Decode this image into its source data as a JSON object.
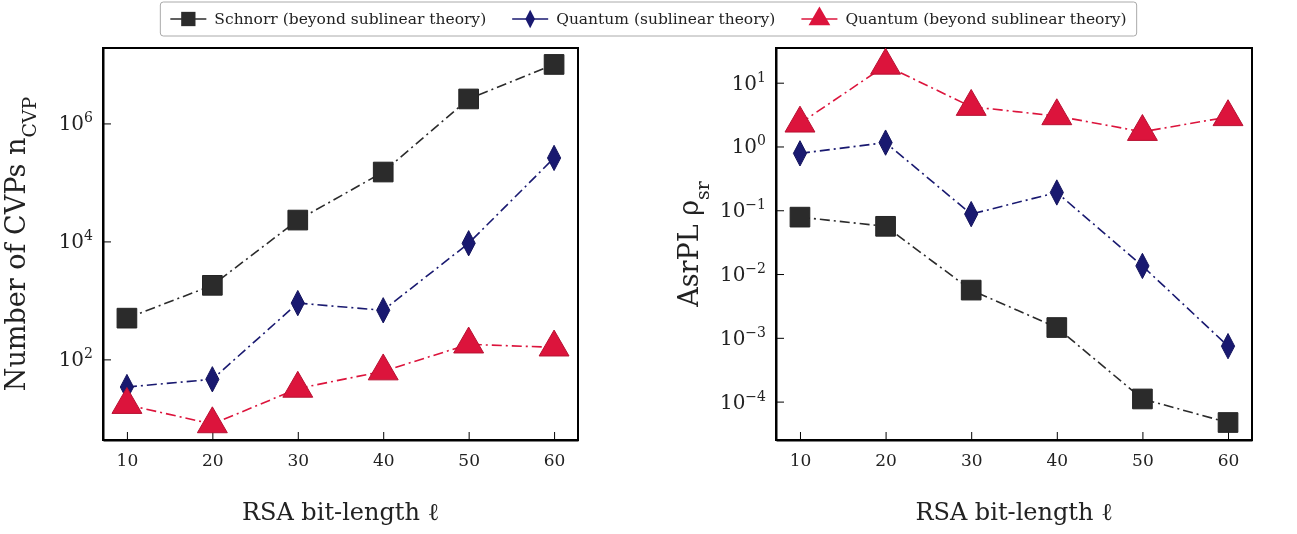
{
  "chart_data": [
    {
      "type": "line",
      "xlabel": "RSA bit-length  ℓ",
      "ylabel": "Number of CVPs  n$_{CVP}$",
      "log": "y",
      "legend": "top",
      "grid": false,
      "line_style": "dashed",
      "x": [
        10,
        20,
        30,
        40,
        50,
        60
      ],
      "xlim": [
        7.2,
        62.8
      ],
      "xticks": [
        10,
        20,
        30,
        40,
        50,
        60
      ],
      "ylim": [
        4.3,
        19000000
      ],
      "yticks": [
        {
          "value": 100,
          "label": "10$^{2}$"
        },
        {
          "value": 10000,
          "label": "10$^{4}$"
        },
        {
          "value": 1000000,
          "label": "10$^{6}$"
        }
      ],
      "series": [
        {
          "name": "Schnorr (beyond sublinear theory)",
          "color": "#2b2b2b",
          "marker": "square",
          "values": [
            500,
            1800,
            23000,
            150000,
            2600000,
            10000000
          ]
        },
        {
          "name": "Quantum (sublinear theory)",
          "color": "#191970",
          "marker": "diamond",
          "values": [
            34,
            46,
            900,
            680,
            9300,
            260000
          ]
        },
        {
          "name": "Quantum (beyond sublinear theory)",
          "color": "#dc143c",
          "marker": "triangle",
          "values": [
            17,
            8,
            32,
            63,
            180,
            160
          ]
        }
      ]
    },
    {
      "type": "line",
      "xlabel": "RSA bit-length  ℓ",
      "ylabel": "AsrPL  ρ$_{sr}$",
      "log": "y",
      "grid": false,
      "line_style": "dashed",
      "x": [
        10,
        20,
        30,
        40,
        50,
        60
      ],
      "xlim": [
        7.2,
        62.8
      ],
      "xticks": [
        10,
        20,
        30,
        40,
        50,
        60
      ],
      "ylim": [
        2.5e-05,
        35
      ],
      "yticks": [
        {
          "value": 0.0001,
          "label": "10$^{−4}$"
        },
        {
          "value": 0.001,
          "label": "10$^{−3}$"
        },
        {
          "value": 0.01,
          "label": "10$^{−2}$"
        },
        {
          "value": 0.1,
          "label": "10$^{−1}$"
        },
        {
          "value": 1,
          "label": "10$^{0}$"
        },
        {
          "value": 10,
          "label": "10$^{1}$"
        }
      ],
      "series": [
        {
          "color": "#2b2b2b",
          "marker": "square",
          "values": [
            0.078,
            0.056,
            0.0056,
            0.00145,
            0.00011,
            4.7e-05
          ]
        },
        {
          "color": "#191970",
          "marker": "diamond",
          "values": [
            0.78,
            1.15,
            0.087,
            0.19,
            0.0134,
            0.00074
          ]
        },
        {
          "color": "#dc143c",
          "marker": "triangle",
          "values": [
            2.3,
            18.6,
            4.2,
            3.0,
            1.7,
            2.9
          ]
        }
      ]
    }
  ]
}
